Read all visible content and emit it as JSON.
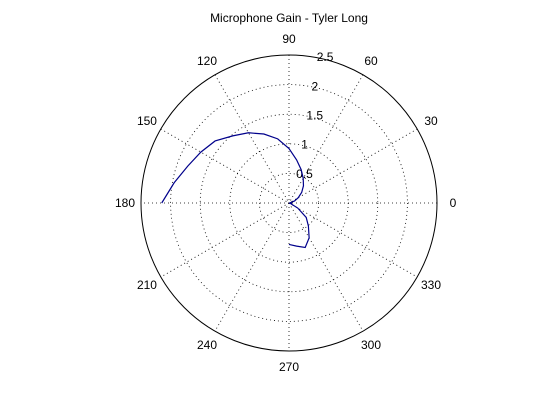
{
  "chart_data": {
    "type": "line",
    "coordinate_system": "polar",
    "title": "Microphone Gain - Tyler Long",
    "angle_unit": "degrees",
    "angle_ticks": [
      "0",
      "30",
      "60",
      "90",
      "120",
      "150",
      "180",
      "210",
      "240",
      "270",
      "300",
      "330"
    ],
    "radial_ticks": [
      "0.5",
      "1",
      "1.5",
      "2",
      "2.5"
    ],
    "rlim": [
      0,
      2.5
    ],
    "grid": true,
    "line_color": "#00008B",
    "series": [
      {
        "theta": [
          -90,
          -80,
          -70,
          -60,
          -50,
          -40,
          -30,
          -20,
          -10,
          0,
          10,
          20,
          30,
          40,
          50,
          60,
          70,
          80,
          90,
          100,
          110,
          120,
          130,
          140,
          150,
          160,
          170,
          180
        ],
        "r": [
          0.7,
          0.74,
          0.8,
          0.68,
          0.51,
          0.38,
          0.17,
          0.03,
          0.05,
          0.0,
          0.02,
          0.1,
          0.18,
          0.28,
          0.38,
          0.48,
          0.6,
          0.74,
          0.92,
          1.1,
          1.24,
          1.37,
          1.48,
          1.63,
          1.72,
          1.82,
          1.97,
          2.15
        ]
      }
    ]
  }
}
